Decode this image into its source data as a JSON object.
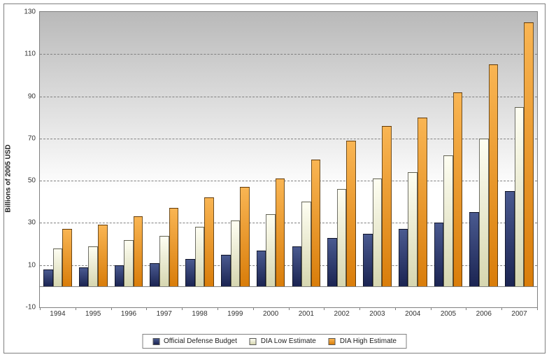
{
  "chart": {
    "type": "bar",
    "ylabel": "Billions of 2005 USD",
    "label_fontsize": 10,
    "ylim": [
      -10,
      130
    ],
    "ytick_step": 20,
    "yticks": [
      -10,
      10,
      30,
      50,
      70,
      90,
      110,
      130
    ],
    "background_gradient_top": "#b9b9b9",
    "background_gradient_bottom": "#ffffff",
    "grid_color": "#808080",
    "baseline_value": 0,
    "categories": [
      "1994",
      "1995",
      "1996",
      "1997",
      "1998",
      "1999",
      "2000",
      "2001",
      "2002",
      "2003",
      "2004",
      "2005",
      "2006",
      "2007"
    ],
    "series": [
      {
        "name": "Official Defense Budget",
        "color_top": "#4a5a90",
        "color_bottom": "#1b2452",
        "values": [
          8,
          9,
          10,
          11,
          13,
          15,
          17,
          19,
          23,
          25,
          27,
          30,
          35,
          45
        ]
      },
      {
        "name": "DIA Low Estimate",
        "color_top": "#fefef2",
        "color_bottom": "#d6d6b0",
        "values": [
          18,
          19,
          22,
          24,
          28,
          31,
          34,
          40,
          46,
          51,
          54,
          62,
          70,
          85
        ]
      },
      {
        "name": "DIA High Estimate",
        "color_top": "#f9b553",
        "color_bottom": "#d97d0a",
        "values": [
          27,
          29,
          33,
          37,
          42,
          47,
          51,
          60,
          69,
          76,
          80,
          92,
          105,
          125
        ]
      }
    ],
    "legend_position": "bottom",
    "bar_cluster_width_pct": 80
  }
}
